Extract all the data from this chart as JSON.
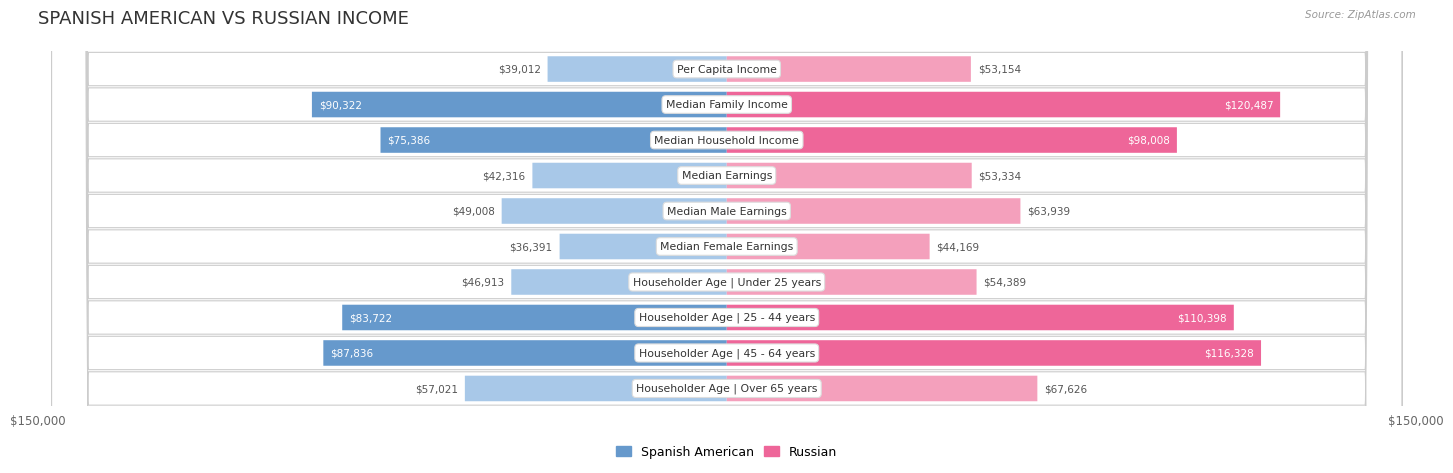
{
  "title": "SPANISH AMERICAN VS RUSSIAN INCOME",
  "source": "Source: ZipAtlas.com",
  "categories": [
    "Per Capita Income",
    "Median Family Income",
    "Median Household Income",
    "Median Earnings",
    "Median Male Earnings",
    "Median Female Earnings",
    "Householder Age | Under 25 years",
    "Householder Age | 25 - 44 years",
    "Householder Age | 45 - 64 years",
    "Householder Age | Over 65 years"
  ],
  "spanish_american": [
    39012,
    90322,
    75386,
    42316,
    49008,
    36391,
    46913,
    83722,
    87836,
    57021
  ],
  "russian": [
    53154,
    120487,
    98008,
    53334,
    63939,
    44169,
    54389,
    110398,
    116328,
    67626
  ],
  "spanish_color": "#a8c8e8",
  "russian_color": "#f4a0bc",
  "spanish_color_strong": "#6699cc",
  "russian_color_strong": "#ee6699",
  "row_bg": "#ffffff",
  "row_border": "#cccccc",
  "fig_bg": "#ffffff",
  "max_value": 150000,
  "xlabel_left": "$150,000",
  "xlabel_right": "$150,000",
  "legend_spanish": "Spanish American",
  "legend_russian": "Russian",
  "title_fontsize": 13,
  "label_fontsize": 8,
  "value_fontsize": 8,
  "inside_threshold_sp": 65000,
  "inside_threshold_ru": 80000
}
